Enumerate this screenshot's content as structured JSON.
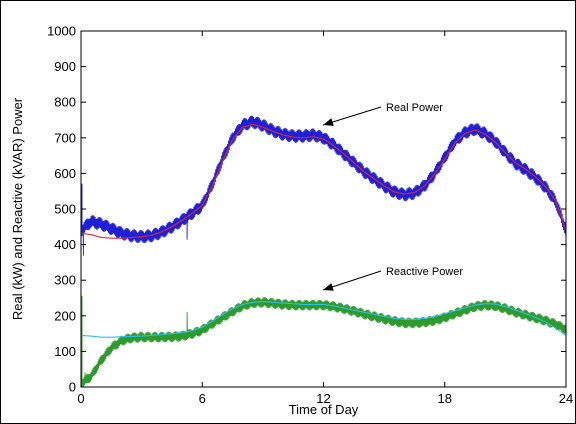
{
  "chart_data": {
    "type": "line",
    "title": "",
    "xlabel": "Time of Day",
    "ylabel": "Real (kW) and Reactive (kVAR) Power",
    "xlim": [
      0,
      24
    ],
    "ylim": [
      0,
      1000
    ],
    "xticks": [
      0,
      6,
      12,
      18,
      24
    ],
    "yticks": [
      0,
      100,
      200,
      300,
      400,
      500,
      600,
      700,
      800,
      900,
      1000
    ],
    "grid": false,
    "legend": "none",
    "annotations": [
      {
        "text": "Real Power",
        "points_to": [
          12,
          705
        ],
        "series": "real_measured"
      },
      {
        "text": "Reactive Power",
        "points_to": [
          12,
          232
        ],
        "series": "reactive_measured"
      }
    ],
    "series": [
      {
        "key": "real_measured",
        "color": "#1f1fd6",
        "style": "oscillating",
        "amplitude": 18,
        "spikes": [
          [
            0.05,
            570
          ],
          [
            0.12,
            370
          ],
          [
            5.25,
            415
          ]
        ],
        "x": [
          0,
          0.5,
          1,
          1.5,
          2,
          2.5,
          3,
          3.5,
          4,
          4.5,
          5,
          5.5,
          6,
          6.5,
          7,
          7.5,
          8,
          8.5,
          9,
          9.5,
          10,
          10.5,
          11,
          11.5,
          12,
          12.5,
          13,
          13.5,
          14,
          14.5,
          15,
          15.5,
          16,
          16.5,
          17,
          17.5,
          18,
          18.5,
          19,
          19.5,
          20,
          20.5,
          21,
          21.5,
          22,
          22.5,
          23,
          23.5,
          24
        ],
        "values": [
          440,
          465,
          458,
          445,
          432,
          425,
          422,
          425,
          435,
          450,
          468,
          488,
          510,
          570,
          640,
          700,
          735,
          745,
          735,
          720,
          710,
          705,
          705,
          708,
          700,
          680,
          655,
          630,
          605,
          585,
          565,
          548,
          540,
          545,
          565,
          600,
          645,
          690,
          715,
          725,
          712,
          690,
          658,
          628,
          610,
          588,
          560,
          520,
          440
        ]
      },
      {
        "key": "real_reference",
        "color": "#e2262c",
        "style": "smooth",
        "x": [
          0,
          0.5,
          1,
          1.5,
          2,
          2.5,
          3,
          3.5,
          4,
          4.5,
          5,
          5.5,
          6,
          6.5,
          7,
          7.5,
          8,
          8.5,
          9,
          9.5,
          10,
          10.5,
          11,
          11.5,
          12,
          12.5,
          13,
          13.5,
          14,
          14.5,
          15,
          15.5,
          16,
          16.5,
          17,
          17.5,
          18,
          18.5,
          19,
          19.5,
          20,
          20.5,
          21,
          21.5,
          22,
          22.5,
          23,
          23.5,
          24
        ],
        "values": [
          432,
          428,
          420,
          418,
          418,
          420,
          422,
          426,
          436,
          450,
          468,
          488,
          510,
          565,
          635,
          695,
          730,
          738,
          730,
          718,
          708,
          702,
          700,
          703,
          697,
          678,
          655,
          630,
          605,
          585,
          565,
          548,
          542,
          546,
          565,
          598,
          640,
          685,
          712,
          722,
          710,
          688,
          658,
          630,
          612,
          590,
          562,
          522,
          440
        ]
      },
      {
        "key": "reactive_measured",
        "color": "#2e9a2e",
        "style": "oscillating",
        "amplitude": 14,
        "spikes": [
          [
            0.05,
            255
          ],
          [
            0.2,
            40
          ],
          [
            5.25,
            210
          ]
        ],
        "x": [
          0,
          0.5,
          1,
          1.5,
          2,
          2.5,
          3,
          3.5,
          4,
          4.5,
          5,
          5.5,
          6,
          6.5,
          7,
          7.5,
          8,
          8.5,
          9,
          9.5,
          10,
          10.5,
          11,
          11.5,
          12,
          12.5,
          13,
          13.5,
          14,
          14.5,
          15,
          15.5,
          16,
          16.5,
          17,
          17.5,
          18,
          18.5,
          19,
          19.5,
          20,
          20.5,
          21,
          21.5,
          22,
          22.5,
          23,
          23.5,
          24
        ],
        "values": [
          10,
          30,
          75,
          110,
          130,
          138,
          140,
          140,
          140,
          141,
          143,
          150,
          160,
          178,
          195,
          212,
          228,
          236,
          238,
          235,
          232,
          230,
          230,
          230,
          230,
          226,
          220,
          213,
          205,
          198,
          191,
          185,
          180,
          180,
          182,
          187,
          195,
          206,
          216,
          226,
          230,
          228,
          220,
          210,
          202,
          194,
          186,
          176,
          162
        ]
      },
      {
        "key": "reactive_reference",
        "color": "#2cc0e6",
        "style": "smooth",
        "x": [
          0,
          0.5,
          1,
          1.5,
          2,
          2.5,
          3,
          3.5,
          4,
          4.5,
          5,
          5.5,
          6,
          6.5,
          7,
          7.5,
          8,
          8.5,
          9,
          9.5,
          10,
          10.5,
          11,
          11.5,
          12,
          12.5,
          13,
          13.5,
          14,
          14.5,
          15,
          15.5,
          16,
          16.5,
          17,
          17.5,
          18,
          18.5,
          19,
          19.5,
          20,
          20.5,
          21,
          21.5,
          22,
          22.5,
          23,
          23.5,
          24
        ],
        "values": [
          145,
          143,
          140,
          140,
          141,
          142,
          143,
          145,
          147,
          150,
          153,
          158,
          168,
          185,
          203,
          220,
          232,
          238,
          240,
          238,
          236,
          234,
          232,
          232,
          232,
          228,
          222,
          216,
          210,
          204,
          198,
          193,
          190,
          190,
          193,
          198,
          206,
          214,
          222,
          230,
          234,
          233,
          226,
          216,
          206,
          195,
          182,
          165,
          145
        ]
      }
    ]
  }
}
